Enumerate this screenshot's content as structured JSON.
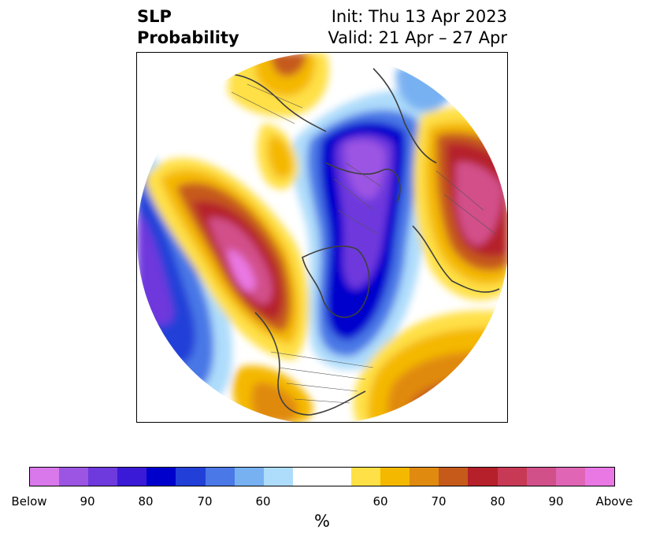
{
  "title": {
    "left_line1": "SLP",
    "left_line2": "Probability",
    "right_line1": "Init: Thu 13 Apr 2023",
    "right_line2": "Valid: 21 Apr – 27 Apr"
  },
  "colorbar": {
    "unit": "%",
    "below_colors": [
      "#d978ea",
      "#9c55e3",
      "#6e39dd",
      "#3a1ad6",
      "#0000cd",
      "#2240d8",
      "#4a78e6",
      "#78b1f2",
      "#aedcfb"
    ],
    "neutral_color": "#ffffff",
    "above_colors": [
      "#ffe046",
      "#f4b800",
      "#e08a10",
      "#c65a1a",
      "#b5202a",
      "#c73955",
      "#d2508a",
      "#e066b5",
      "#ea78e4"
    ],
    "tick_labels": [
      "Below",
      "90",
      "80",
      "70",
      "60",
      "60",
      "70",
      "80",
      "90",
      "Above"
    ]
  }
}
